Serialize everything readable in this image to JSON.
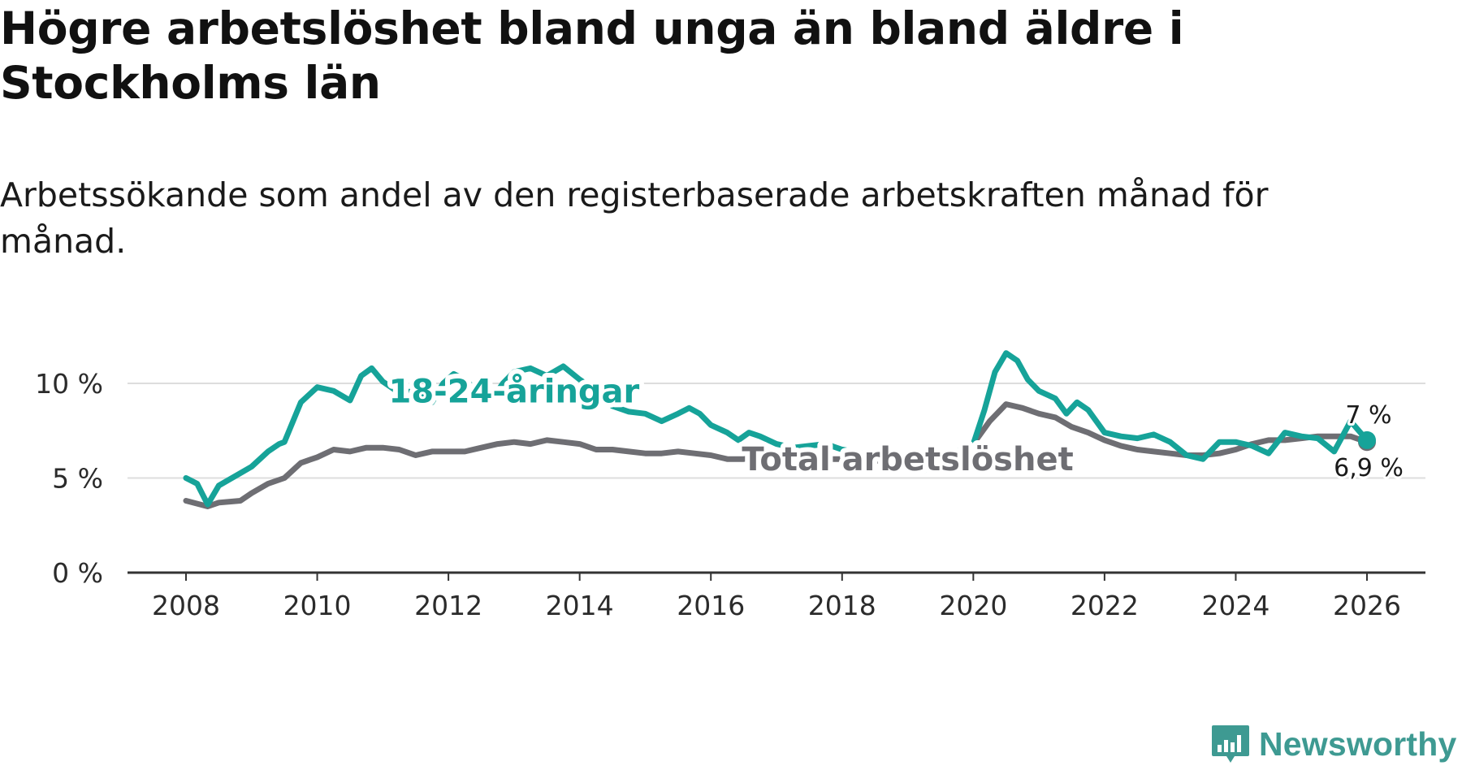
{
  "title": "Högre arbetslöshet bland unga än bland äldre i Stockholms län",
  "subtitle": "Arbetssökande som andel av den registerbaserade arbetskraften månad för månad.",
  "brand": {
    "name": "Newsworthy",
    "color": "#3e9a92",
    "icon": "chart-bubble-icon"
  },
  "chart_data": {
    "type": "line",
    "title": "Högre arbetslöshet bland unga än bland äldre i Stockholms län",
    "xlabel": "",
    "ylabel": "",
    "xlim": [
      2007.85,
      2027.0
    ],
    "ylim": [
      0,
      12
    ],
    "grid": true,
    "x_ticks": [
      {
        "value": 2008,
        "label": "2008"
      },
      {
        "value": 2010,
        "label": "2010"
      },
      {
        "value": 2012,
        "label": "2012"
      },
      {
        "value": 2014,
        "label": "2014"
      },
      {
        "value": 2016,
        "label": "2016"
      },
      {
        "value": 2018,
        "label": "2018"
      },
      {
        "value": 2020,
        "label": "2020"
      },
      {
        "value": 2022,
        "label": "2022"
      },
      {
        "value": 2024,
        "label": "2024"
      },
      {
        "value": 2026,
        "label": "2026"
      }
    ],
    "y_ticks": [
      {
        "value": 0,
        "label": "0 %"
      },
      {
        "value": 5,
        "label": "5 %"
      },
      {
        "value": 10,
        "label": "10 %"
      }
    ],
    "series": [
      {
        "name": "Total arbetslöshet",
        "color": "#6e6e73",
        "end_label": "6,9 %",
        "points": [
          [
            2008.0,
            3.8
          ],
          [
            2008.33,
            3.5
          ],
          [
            2008.5,
            3.7
          ],
          [
            2008.83,
            3.8
          ],
          [
            2009.0,
            4.2
          ],
          [
            2009.25,
            4.7
          ],
          [
            2009.5,
            5.0
          ],
          [
            2009.75,
            5.8
          ],
          [
            2010.0,
            6.1
          ],
          [
            2010.25,
            6.5
          ],
          [
            2010.5,
            6.4
          ],
          [
            2010.75,
            6.6
          ],
          [
            2011.0,
            6.6
          ],
          [
            2011.25,
            6.5
          ],
          [
            2011.5,
            6.2
          ],
          [
            2011.75,
            6.4
          ],
          [
            2012.0,
            6.4
          ],
          [
            2012.25,
            6.4
          ],
          [
            2012.5,
            6.6
          ],
          [
            2012.75,
            6.8
          ],
          [
            2013.0,
            6.9
          ],
          [
            2013.25,
            6.8
          ],
          [
            2013.5,
            7.0
          ],
          [
            2013.75,
            6.9
          ],
          [
            2014.0,
            6.8
          ],
          [
            2014.25,
            6.5
          ],
          [
            2014.5,
            6.5
          ],
          [
            2014.75,
            6.4
          ],
          [
            2015.0,
            6.3
          ],
          [
            2015.25,
            6.3
          ],
          [
            2015.5,
            6.4
          ],
          [
            2015.75,
            6.3
          ],
          [
            2016.0,
            6.2
          ],
          [
            2016.25,
            6.0
          ],
          [
            2016.5,
            6.0
          ],
          [
            2016.75,
            6.1
          ],
          [
            2017.0,
            6.0
          ],
          [
            2017.25,
            6.0
          ],
          [
            2017.5,
            6.0
          ],
          [
            2017.75,
            6.0
          ],
          [
            2018.0,
            6.0
          ],
          [
            2018.5,
            5.9
          ],
          [
            2019.0,
            6.0
          ],
          [
            2019.5,
            6.0
          ],
          [
            2019.75,
            6.2
          ],
          [
            2020.0,
            6.8
          ],
          [
            2020.25,
            8.0
          ],
          [
            2020.5,
            8.9
          ],
          [
            2020.75,
            8.7
          ],
          [
            2021.0,
            8.4
          ],
          [
            2021.25,
            8.2
          ],
          [
            2021.5,
            7.7
          ],
          [
            2021.75,
            7.4
          ],
          [
            2022.0,
            7.0
          ],
          [
            2022.25,
            6.7
          ],
          [
            2022.5,
            6.5
          ],
          [
            2022.75,
            6.4
          ],
          [
            2023.0,
            6.3
          ],
          [
            2023.25,
            6.2
          ],
          [
            2023.5,
            6.2
          ],
          [
            2023.75,
            6.3
          ],
          [
            2024.0,
            6.5
          ],
          [
            2024.25,
            6.8
          ],
          [
            2024.5,
            7.0
          ],
          [
            2024.75,
            7.0
          ],
          [
            2025.0,
            7.1
          ],
          [
            2025.25,
            7.2
          ],
          [
            2025.5,
            7.2
          ],
          [
            2025.75,
            7.2
          ],
          [
            2026.0,
            6.9
          ]
        ]
      },
      {
        "name": "18-24-åringar",
        "color": "#16a399",
        "end_label": "7 %",
        "points": [
          [
            2008.0,
            5.0
          ],
          [
            2008.17,
            4.7
          ],
          [
            2008.33,
            3.6
          ],
          [
            2008.5,
            4.6
          ],
          [
            2008.75,
            5.1
          ],
          [
            2009.0,
            5.6
          ],
          [
            2009.25,
            6.4
          ],
          [
            2009.42,
            6.8
          ],
          [
            2009.5,
            6.9
          ],
          [
            2009.75,
            9.0
          ],
          [
            2010.0,
            9.8
          ],
          [
            2010.25,
            9.6
          ],
          [
            2010.5,
            9.1
          ],
          [
            2010.67,
            10.4
          ],
          [
            2010.83,
            10.8
          ],
          [
            2011.0,
            10.1
          ],
          [
            2011.25,
            9.5
          ],
          [
            2011.5,
            9.6
          ],
          [
            2011.75,
            9.0
          ],
          [
            2011.92,
            10.0
          ],
          [
            2012.08,
            10.5
          ],
          [
            2012.25,
            10.2
          ],
          [
            2012.5,
            9.4
          ],
          [
            2012.67,
            9.2
          ],
          [
            2012.83,
            10.0
          ],
          [
            2013.0,
            10.6
          ],
          [
            2013.25,
            10.8
          ],
          [
            2013.5,
            10.4
          ],
          [
            2013.75,
            10.9
          ],
          [
            2014.0,
            10.2
          ],
          [
            2014.25,
            9.6
          ],
          [
            2014.5,
            8.8
          ],
          [
            2014.75,
            8.5
          ],
          [
            2015.0,
            8.4
          ],
          [
            2015.25,
            8.0
          ],
          [
            2015.5,
            8.4
          ],
          [
            2015.67,
            8.7
          ],
          [
            2015.83,
            8.4
          ],
          [
            2016.0,
            7.8
          ],
          [
            2016.25,
            7.4
          ],
          [
            2016.42,
            7.0
          ],
          [
            2016.58,
            7.4
          ],
          [
            2016.75,
            7.2
          ],
          [
            2017.0,
            6.8
          ],
          [
            2017.25,
            6.6
          ],
          [
            2017.5,
            6.7
          ],
          [
            2017.75,
            6.8
          ],
          [
            2018.0,
            6.5
          ],
          [
            2018.5,
            6.2
          ],
          [
            2019.0,
            5.8
          ],
          [
            2019.25,
            5.4
          ],
          [
            2019.5,
            6.0
          ],
          [
            2019.75,
            6.4
          ],
          [
            2020.0,
            6.8
          ],
          [
            2020.17,
            8.6
          ],
          [
            2020.33,
            10.6
          ],
          [
            2020.5,
            11.6
          ],
          [
            2020.67,
            11.2
          ],
          [
            2020.83,
            10.2
          ],
          [
            2021.0,
            9.6
          ],
          [
            2021.25,
            9.2
          ],
          [
            2021.42,
            8.4
          ],
          [
            2021.58,
            9.0
          ],
          [
            2021.75,
            8.6
          ],
          [
            2022.0,
            7.4
          ],
          [
            2022.25,
            7.2
          ],
          [
            2022.5,
            7.1
          ],
          [
            2022.75,
            7.3
          ],
          [
            2023.0,
            6.9
          ],
          [
            2023.25,
            6.2
          ],
          [
            2023.5,
            6.0
          ],
          [
            2023.75,
            6.9
          ],
          [
            2024.0,
            6.9
          ],
          [
            2024.25,
            6.7
          ],
          [
            2024.5,
            6.3
          ],
          [
            2024.75,
            7.4
          ],
          [
            2025.0,
            7.2
          ],
          [
            2025.25,
            7.1
          ],
          [
            2025.5,
            6.4
          ],
          [
            2025.75,
            8.0
          ],
          [
            2026.0,
            7.0
          ]
        ]
      }
    ],
    "annotations": [
      {
        "text": "18-24-åringar",
        "series": "18-24-åringar",
        "x": 2013.0,
        "y": 9.6
      },
      {
        "text": "Total arbetslöshet",
        "series": "Total arbetslöshet",
        "x": 2019.0,
        "y": 6.0
      }
    ]
  }
}
